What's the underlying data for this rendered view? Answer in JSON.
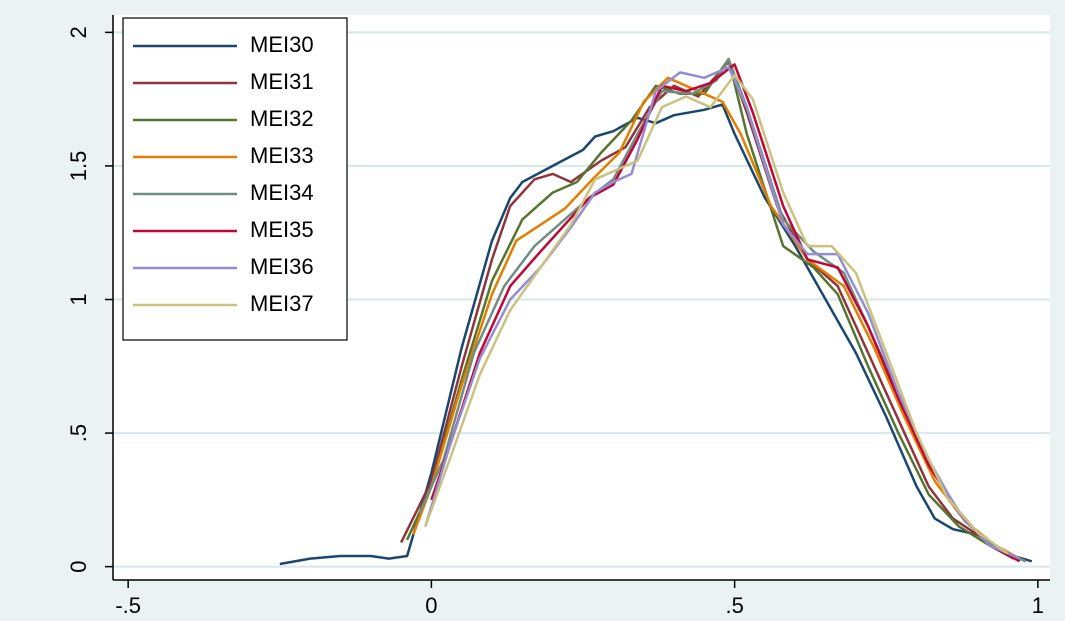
{
  "chart_data": {
    "type": "line",
    "xlim": [
      -0.525,
      1.02
    ],
    "ylim": [
      -0.05,
      2.065
    ],
    "xticks": [
      {
        "value": -0.5,
        "label": "-.5"
      },
      0,
      {
        "value": 0.5,
        "label": ".5"
      },
      1
    ],
    "yticks": [
      0,
      {
        "value": 0.5,
        "label": ".5"
      },
      1,
      1.5,
      2
    ],
    "grid": true,
    "legend": "top-left",
    "series": [
      {
        "name": "MEI30",
        "color": "#1a476f",
        "x": [
          -0.25,
          -0.2,
          -0.15,
          -0.1,
          -0.07,
          -0.04,
          0,
          0.05,
          0.1,
          0.13,
          0.15,
          0.2,
          0.25,
          0.27,
          0.3,
          0.34,
          0.37,
          0.4,
          0.45,
          0.48,
          0.5,
          0.55,
          0.6,
          0.65,
          0.7,
          0.75,
          0.8,
          0.83,
          0.86,
          0.9,
          0.93,
          0.96,
          0.99
        ],
        "values": [
          0.01,
          0.03,
          0.04,
          0.04,
          0.03,
          0.04,
          0.35,
          0.82,
          1.22,
          1.38,
          1.44,
          1.5,
          1.56,
          1.61,
          1.63,
          1.68,
          1.66,
          1.69,
          1.71,
          1.73,
          1.62,
          1.38,
          1.2,
          1.0,
          0.8,
          0.56,
          0.3,
          0.18,
          0.14,
          0.12,
          0.08,
          0.04,
          0.02
        ]
      },
      {
        "name": "MEI31",
        "color": "#90353b",
        "x": [
          -0.05,
          0,
          0.05,
          0.1,
          0.13,
          0.17,
          0.2,
          0.23,
          0.28,
          0.32,
          0.36,
          0.4,
          0.44,
          0.49,
          0.52,
          0.57,
          0.62,
          0.67,
          0.72,
          0.77,
          0.82,
          0.86,
          0.9,
          0.95,
          0.98
        ],
        "values": [
          0.09,
          0.32,
          0.75,
          1.15,
          1.35,
          1.45,
          1.47,
          1.44,
          1.52,
          1.57,
          1.72,
          1.8,
          1.76,
          1.89,
          1.7,
          1.35,
          1.15,
          1.05,
          0.8,
          0.55,
          0.3,
          0.18,
          0.12,
          0.05,
          0.02
        ]
      },
      {
        "name": "MEI32",
        "color": "#55752f",
        "x": [
          -0.04,
          0,
          0.05,
          0.1,
          0.15,
          0.2,
          0.24,
          0.28,
          0.33,
          0.37,
          0.41,
          0.45,
          0.49,
          0.52,
          0.58,
          0.63,
          0.67,
          0.72,
          0.77,
          0.82,
          0.87,
          0.92,
          0.96
        ],
        "values": [
          0.1,
          0.3,
          0.7,
          1.07,
          1.3,
          1.4,
          1.44,
          1.55,
          1.67,
          1.8,
          1.77,
          1.77,
          1.9,
          1.62,
          1.2,
          1.12,
          1.02,
          0.75,
          0.5,
          0.27,
          0.15,
          0.08,
          0.03
        ]
      },
      {
        "name": "MEI33",
        "color": "#e37e00",
        "x": [
          -0.03,
          0,
          0.05,
          0.1,
          0.14,
          0.18,
          0.22,
          0.27,
          0.31,
          0.35,
          0.39,
          0.44,
          0.48,
          0.51,
          0.56,
          0.62,
          0.68,
          0.73,
          0.78,
          0.83,
          0.88,
          0.93,
          0.97
        ],
        "values": [
          0.12,
          0.3,
          0.68,
          1.02,
          1.22,
          1.28,
          1.34,
          1.46,
          1.55,
          1.74,
          1.83,
          1.78,
          1.74,
          1.62,
          1.35,
          1.15,
          1.05,
          0.82,
          0.56,
          0.32,
          0.17,
          0.08,
          0.03
        ]
      },
      {
        "name": "MEI34",
        "color": "#6e8e84",
        "x": [
          -0.02,
          0.02,
          0.07,
          0.12,
          0.17,
          0.22,
          0.26,
          0.3,
          0.34,
          0.38,
          0.43,
          0.47,
          0.49,
          0.52,
          0.58,
          0.63,
          0.68,
          0.73,
          0.78,
          0.83,
          0.88,
          0.93,
          0.98
        ],
        "values": [
          0.2,
          0.4,
          0.8,
          1.05,
          1.2,
          1.3,
          1.38,
          1.45,
          1.62,
          1.78,
          1.77,
          1.82,
          1.9,
          1.72,
          1.3,
          1.18,
          1.1,
          0.85,
          0.6,
          0.35,
          0.17,
          0.07,
          0.02
        ]
      },
      {
        "name": "MEI35",
        "color": "#c10534",
        "x": [
          0,
          0.03,
          0.08,
          0.13,
          0.18,
          0.22,
          0.26,
          0.3,
          0.34,
          0.38,
          0.42,
          0.46,
          0.5,
          0.53,
          0.58,
          0.62,
          0.67,
          0.72,
          0.77,
          0.82,
          0.87,
          0.92,
          0.97
        ],
        "values": [
          0.25,
          0.45,
          0.8,
          1.05,
          1.18,
          1.28,
          1.38,
          1.43,
          1.6,
          1.8,
          1.78,
          1.81,
          1.88,
          1.7,
          1.35,
          1.15,
          1.12,
          0.9,
          0.63,
          0.38,
          0.2,
          0.08,
          0.02
        ]
      },
      {
        "name": "MEI36",
        "color": "#938dd2",
        "x": [
          -0.01,
          0.03,
          0.08,
          0.13,
          0.18,
          0.23,
          0.27,
          0.3,
          0.33,
          0.37,
          0.41,
          0.45,
          0.49,
          0.52,
          0.58,
          0.62,
          0.67,
          0.72,
          0.77,
          0.82,
          0.87,
          0.92,
          0.97
        ],
        "values": [
          0.15,
          0.45,
          0.78,
          1.0,
          1.12,
          1.27,
          1.4,
          1.44,
          1.47,
          1.78,
          1.85,
          1.83,
          1.87,
          1.72,
          1.28,
          1.17,
          1.17,
          0.95,
          0.65,
          0.4,
          0.2,
          0.08,
          0.03
        ]
      },
      {
        "name": "MEI37",
        "color": "#cac27e",
        "x": [
          -0.01,
          0.03,
          0.08,
          0.13,
          0.18,
          0.23,
          0.27,
          0.3,
          0.34,
          0.38,
          0.42,
          0.46,
          0.5,
          0.53,
          0.58,
          0.62,
          0.66,
          0.7,
          0.75,
          0.8,
          0.85,
          0.9,
          0.95
        ],
        "values": [
          0.15,
          0.4,
          0.72,
          0.96,
          1.12,
          1.28,
          1.45,
          1.48,
          1.52,
          1.72,
          1.76,
          1.72,
          1.84,
          1.75,
          1.4,
          1.2,
          1.2,
          1.1,
          0.8,
          0.5,
          0.26,
          0.13,
          0.05
        ]
      }
    ]
  }
}
